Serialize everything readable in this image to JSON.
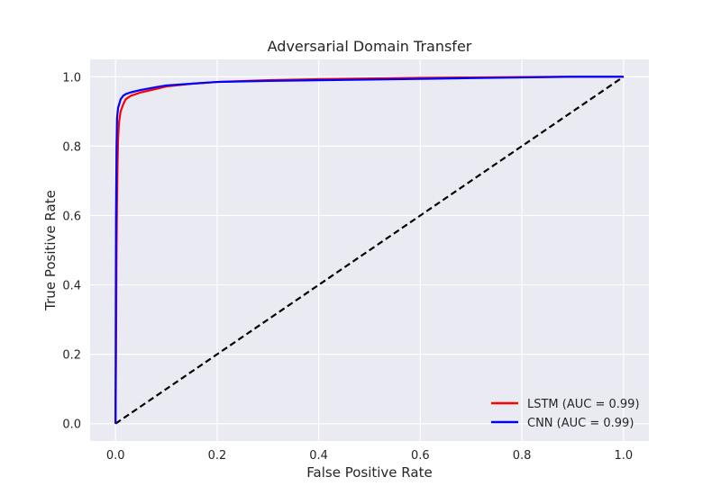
{
  "chart_data": {
    "type": "line",
    "title": "Adversarial Domain Transfer",
    "xlabel": "False Positive Rate",
    "ylabel": "True Positive Rate",
    "xlim": [
      -0.05,
      1.05
    ],
    "ylim": [
      -0.05,
      1.05
    ],
    "xticks": [
      0.0,
      0.2,
      0.4,
      0.6,
      0.8,
      1.0
    ],
    "yticks": [
      0.0,
      0.2,
      0.4,
      0.6,
      0.8,
      1.0
    ],
    "xtick_labels": [
      "0.0",
      "0.2",
      "0.4",
      "0.6",
      "0.8",
      "1.0"
    ],
    "ytick_labels": [
      "0.0",
      "0.2",
      "0.4",
      "0.6",
      "0.8",
      "1.0"
    ],
    "grid": true,
    "legend_position": "lower-right",
    "series": [
      {
        "name": "LSTM (AUC = 0.99)",
        "color": "#ff0000",
        "style": "solid",
        "x": [
          0.0,
          0.001,
          0.002,
          0.003,
          0.004,
          0.005,
          0.007,
          0.01,
          0.015,
          0.02,
          0.03,
          0.05,
          0.08,
          0.1,
          0.15,
          0.2,
          0.3,
          0.4,
          0.5,
          0.6,
          0.7,
          0.8,
          0.9,
          1.0
        ],
        "y": [
          0.0,
          0.2,
          0.5,
          0.65,
          0.75,
          0.82,
          0.87,
          0.9,
          0.92,
          0.935,
          0.945,
          0.955,
          0.965,
          0.972,
          0.98,
          0.985,
          0.99,
          0.993,
          0.995,
          0.997,
          0.998,
          0.999,
          1.0,
          1.0
        ]
      },
      {
        "name": "CNN (AUC = 0.99)",
        "color": "#0000ff",
        "style": "solid",
        "x": [
          0.0,
          0.0005,
          0.001,
          0.002,
          0.003,
          0.005,
          0.008,
          0.01,
          0.015,
          0.02,
          0.03,
          0.05,
          0.08,
          0.1,
          0.15,
          0.2,
          0.3,
          0.4,
          0.5,
          0.6,
          0.7,
          0.8,
          0.9,
          1.0
        ],
        "y": [
          0.0,
          0.3,
          0.6,
          0.8,
          0.88,
          0.91,
          0.925,
          0.935,
          0.945,
          0.95,
          0.955,
          0.962,
          0.97,
          0.975,
          0.98,
          0.985,
          0.988,
          0.99,
          0.992,
          0.994,
          0.996,
          0.998,
          1.0,
          1.0
        ]
      },
      {
        "name": "",
        "color": "#000000",
        "style": "dashed",
        "x": [
          0.0,
          1.0
        ],
        "y": [
          0.0,
          1.0
        ]
      }
    ]
  }
}
